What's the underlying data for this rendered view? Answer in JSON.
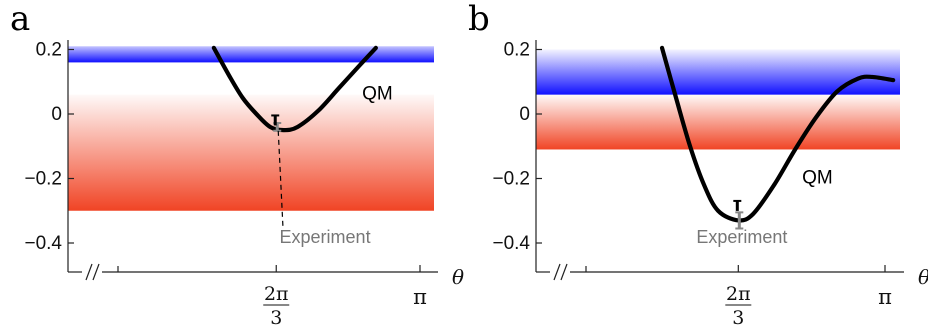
{
  "chart_data": [
    {
      "type": "line",
      "panel_label": "a",
      "xlabel": "θ",
      "x_ticks": [
        {
          "value": 2.0944,
          "label_num": "2π",
          "label_den": "3"
        },
        {
          "value": 3.14159,
          "label": "π"
        }
      ],
      "y_ticks": [
        {
          "value": 0.2,
          "label": "0.2"
        },
        {
          "value": 0,
          "label": "0"
        },
        {
          "value": -0.2,
          "label": "−0.2"
        },
        {
          "value": -0.4,
          "label": "−0.4"
        }
      ],
      "ylim": [
        -0.48,
        0.24
      ],
      "axis_break": true,
      "bands": [
        {
          "name": "blue",
          "y_from": 0.21,
          "y_to": 0.16,
          "color": "#1010ff"
        },
        {
          "name": "red",
          "y_from": 0.06,
          "y_to": -0.3,
          "color": "#f04020"
        }
      ],
      "series": [
        {
          "name": "QM",
          "x": [
            1.64,
            1.75,
            1.85,
            1.95,
            2.05,
            2.15,
            2.25,
            2.4,
            2.55,
            2.7,
            2.82
          ],
          "y": [
            0.205,
            0.12,
            0.05,
            0.0,
            -0.04,
            -0.05,
            -0.04,
            0.01,
            0.08,
            0.15,
            0.205
          ]
        }
      ],
      "experiment": {
        "label": "Experiment",
        "x": 2.0944,
        "y_black": -0.02,
        "y_gray": -0.04,
        "err": 0.012
      },
      "annotations": [
        {
          "text": "QM",
          "x": 2.72,
          "y": 0.045
        },
        {
          "text": "Experiment",
          "x": 2.45,
          "y": -0.4
        }
      ]
    },
    {
      "type": "line",
      "panel_label": "b",
      "xlabel": "θ",
      "x_ticks": [
        {
          "value": 2.0944,
          "label_num": "2π",
          "label_den": "3"
        },
        {
          "value": 3.14159,
          "label": "π"
        }
      ],
      "y_ticks": [
        {
          "value": 0.2,
          "label": "0.2"
        },
        {
          "value": 0,
          "label": "0"
        },
        {
          "value": -0.2,
          "label": "−0.2"
        },
        {
          "value": -0.4,
          "label": "−0.4"
        }
      ],
      "ylim": [
        -0.48,
        0.24
      ],
      "axis_break": true,
      "bands": [
        {
          "name": "blue",
          "y_from": 0.2,
          "y_to": 0.06,
          "color": "#1010ff"
        },
        {
          "name": "red",
          "y_from": 0.06,
          "y_to": -0.11,
          "color": "#f04020"
        }
      ],
      "series": [
        {
          "name": "QM",
          "x": [
            1.55,
            1.65,
            1.75,
            1.85,
            1.95,
            2.0944,
            2.2,
            2.35,
            2.5,
            2.65,
            2.8,
            2.95,
            3.05,
            3.2
          ],
          "y": [
            0.205,
            0.05,
            -0.1,
            -0.22,
            -0.3,
            -0.33,
            -0.31,
            -0.22,
            -0.11,
            -0.01,
            0.07,
            0.11,
            0.115,
            0.105
          ]
        }
      ],
      "experiment": {
        "label": "Experiment",
        "x": 2.0944,
        "y_black": -0.285,
        "y_gray": -0.33,
        "err": 0.025
      },
      "annotations": [
        {
          "text": "QM",
          "x": 2.55,
          "y": -0.215
        },
        {
          "text": "Experiment",
          "x": 2.12,
          "y": -0.4
        }
      ]
    }
  ]
}
